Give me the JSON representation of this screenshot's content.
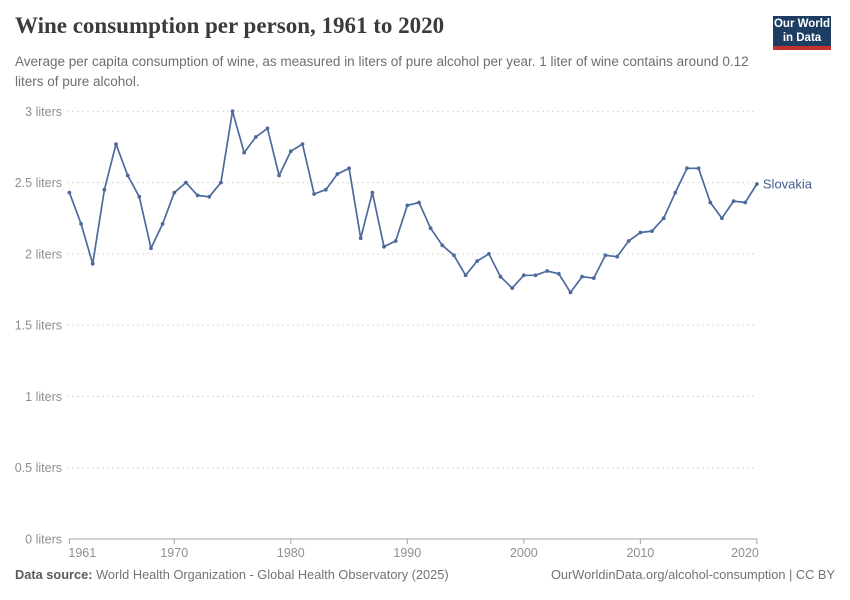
{
  "header": {
    "title": "Wine consumption per person, 1961 to 2020",
    "subtitle": "Average per capita consumption of wine, as measured in liters of pure alcohol per year. 1 liter of wine contains around 0.12 liters of pure alcohol.",
    "logo": {
      "line1": "Our World",
      "line2": "in Data",
      "bg_color": "#1d3d63",
      "stripe_color": "#c4302b"
    }
  },
  "chart_data": {
    "type": "line",
    "title": "Wine consumption per person, 1961 to 2020",
    "xlabel": "",
    "ylabel": "liters",
    "xlim": [
      1961,
      2020
    ],
    "ylim": [
      0,
      3
    ],
    "grid": "horizontal-dashed",
    "legend_position": "end-of-line-label",
    "x_ticks": [
      1961,
      1970,
      1980,
      1990,
      2000,
      2010,
      2020
    ],
    "y_ticks": [
      {
        "value": 0,
        "label": "0 liters"
      },
      {
        "value": 0.5,
        "label": "0.5 liters"
      },
      {
        "value": 1,
        "label": "1 liters"
      },
      {
        "value": 1.5,
        "label": "1.5 liters"
      },
      {
        "value": 2,
        "label": "2 liters"
      },
      {
        "value": 2.5,
        "label": "2.5 liters"
      },
      {
        "value": 3,
        "label": "3 liters"
      }
    ],
    "colors": {
      "grid": "#d9d9d9",
      "axis": "#a3a3a3",
      "tick_text": "#8f8f8f"
    },
    "series": [
      {
        "name": "Slovakia",
        "color": "#4c6a9c",
        "label_color": "#3d5c8e",
        "x": [
          1961,
          1962,
          1963,
          1964,
          1965,
          1966,
          1967,
          1968,
          1969,
          1970,
          1971,
          1972,
          1973,
          1974,
          1975,
          1976,
          1977,
          1978,
          1979,
          1980,
          1981,
          1982,
          1983,
          1984,
          1985,
          1986,
          1987,
          1988,
          1989,
          1990,
          1991,
          1992,
          1993,
          1994,
          1995,
          1996,
          1997,
          1998,
          1999,
          2000,
          2001,
          2002,
          2003,
          2004,
          2005,
          2006,
          2007,
          2008,
          2009,
          2010,
          2011,
          2012,
          2013,
          2014,
          2015,
          2016,
          2017,
          2018,
          2019,
          2020
        ],
        "values": [
          2.43,
          2.21,
          1.93,
          2.45,
          2.77,
          2.55,
          2.4,
          2.04,
          2.21,
          2.43,
          2.5,
          2.41,
          2.4,
          2.5,
          3.0,
          2.71,
          2.82,
          2.88,
          2.55,
          2.72,
          2.77,
          2.42,
          2.45,
          2.56,
          2.6,
          2.11,
          2.43,
          2.05,
          2.09,
          2.34,
          2.36,
          2.18,
          2.06,
          1.99,
          1.85,
          1.95,
          2.0,
          1.84,
          1.76,
          1.85,
          1.85,
          1.88,
          1.86,
          1.73,
          1.84,
          1.83,
          1.99,
          1.98,
          2.09,
          2.15,
          2.16,
          2.25,
          2.43,
          2.6,
          2.6,
          2.36,
          2.25,
          2.37,
          2.36,
          2.49
        ]
      }
    ]
  },
  "footer": {
    "datasource_label": "Data source:",
    "datasource_text": " World Health Organization - Global Health Observatory (2025)",
    "attribution": "OurWorldinData.org/alcohol-consumption | CC BY"
  }
}
